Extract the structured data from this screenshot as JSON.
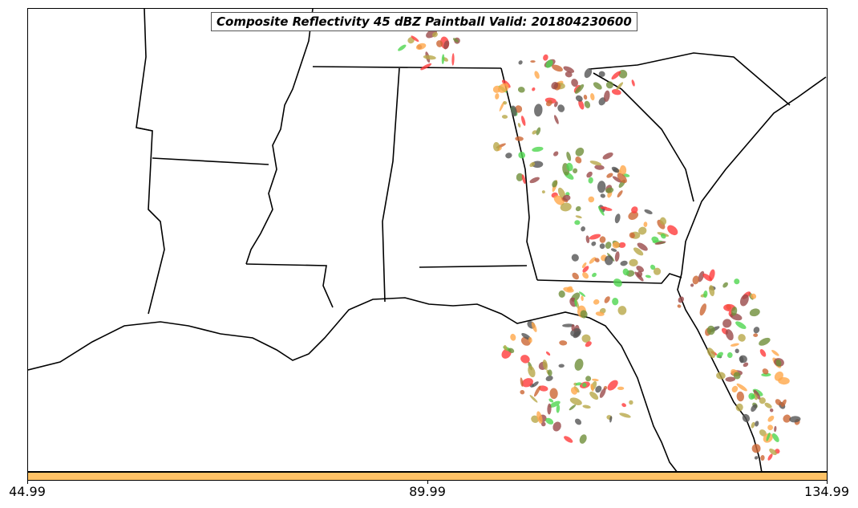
{
  "title": "Composite Reflectivity 45 dBZ Paintball Valid: 201804230600",
  "colorbar": {
    "color": "#ffc266",
    "ticks": [
      "44.99",
      "89.99",
      "134.99"
    ]
  },
  "map": {
    "region": "Southeastern United States",
    "land_color": "#ffffff",
    "border_color": "#000000",
    "paintball_colors": [
      "#ff3b3b",
      "#9a4a4a",
      "#ffa84a",
      "#4fd64f",
      "#6f8f3a",
      "#b8a848",
      "#555555",
      "#cc6633"
    ]
  }
}
